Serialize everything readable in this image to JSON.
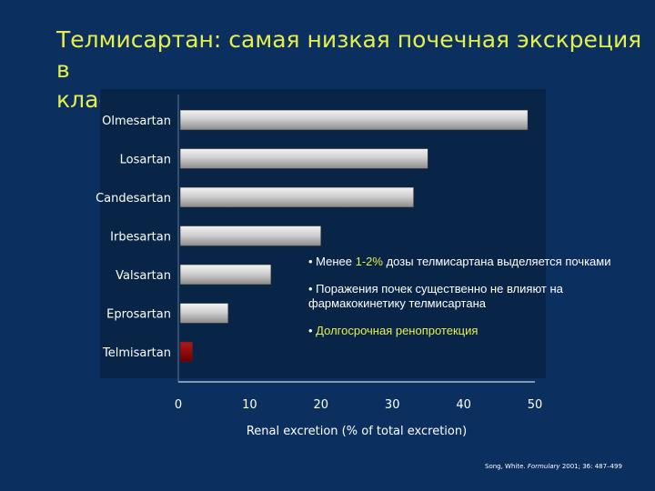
{
  "slide": {
    "title_line1": "Телмисартан: самая низкая почечная экскреция в",
    "title_line2": "классе АРА"
  },
  "bullets": [
    {
      "pre": "• Менее ",
      "highlight": "1-2%",
      "post": " дозы телмисартана выделяется почками"
    },
    {
      "pre": "• Поражения почек существенно не влияют на фармакокинетику телмисартана",
      "highlight": "",
      "post": ""
    },
    {
      "pre": "• ",
      "highlight": "Долгосрочная ренопротекция",
      "post": ""
    }
  ],
  "citation": {
    "authors": "Song, White.",
    "journal": "Formulary",
    "details": "2001; 36: 487–499"
  },
  "chart_data": {
    "type": "bar",
    "orientation": "horizontal",
    "categories": [
      "Olmesartan",
      "Losartan",
      "Candesartan",
      "Irbesartan",
      "Valsartan",
      "Eprosartan",
      "Telmisartan"
    ],
    "values": [
      49,
      35,
      33,
      20,
      13,
      7,
      2
    ],
    "xlabel": "Renal excretion (% of total excretion)",
    "ylabel": "",
    "xlim": [
      0,
      50
    ],
    "xticks": [
      0,
      10,
      20,
      30,
      40,
      50
    ],
    "bar_color": "#c8c8c8",
    "highlight_category": "Telmisartan",
    "highlight_color": "#8b0000",
    "grid": false
  }
}
